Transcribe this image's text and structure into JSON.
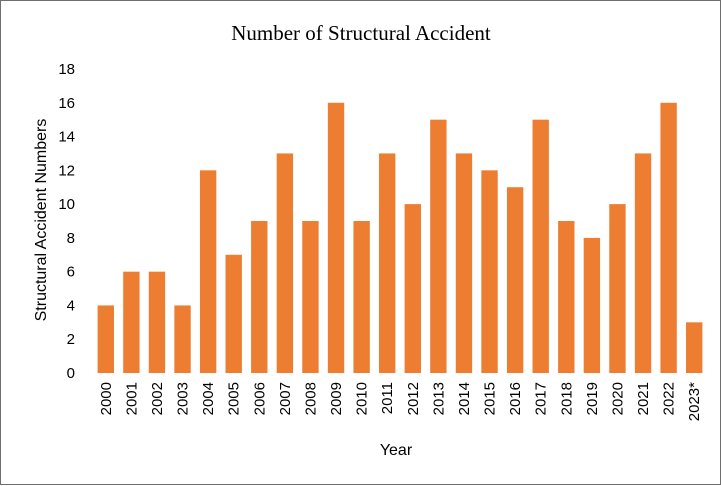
{
  "chart_data": {
    "type": "bar",
    "title": "Number of Structural Accident",
    "xlabel": "Year",
    "ylabel": "Structural Accident Numbers",
    "categories": [
      "2000",
      "2001",
      "2002",
      "2003",
      "2004",
      "2005",
      "2006",
      "2007",
      "2008",
      "2009",
      "2010",
      "2011",
      "2012",
      "2013",
      "2014",
      "2015",
      "2016",
      "2017",
      "2018",
      "2019",
      "2020",
      "2021",
      "2022",
      "2023*"
    ],
    "values": [
      4,
      6,
      6,
      4,
      12,
      7,
      9,
      13,
      9,
      16,
      9,
      13,
      10,
      15,
      13,
      12,
      11,
      15,
      9,
      8,
      10,
      13,
      16,
      3
    ],
    "ylim": [
      0,
      18
    ],
    "yticks": [
      "0",
      "2",
      "4",
      "6",
      "8",
      "10",
      "12",
      "14",
      "16",
      "18"
    ],
    "grid": false,
    "legend": "none",
    "bar_color": "#ED7D31"
  }
}
